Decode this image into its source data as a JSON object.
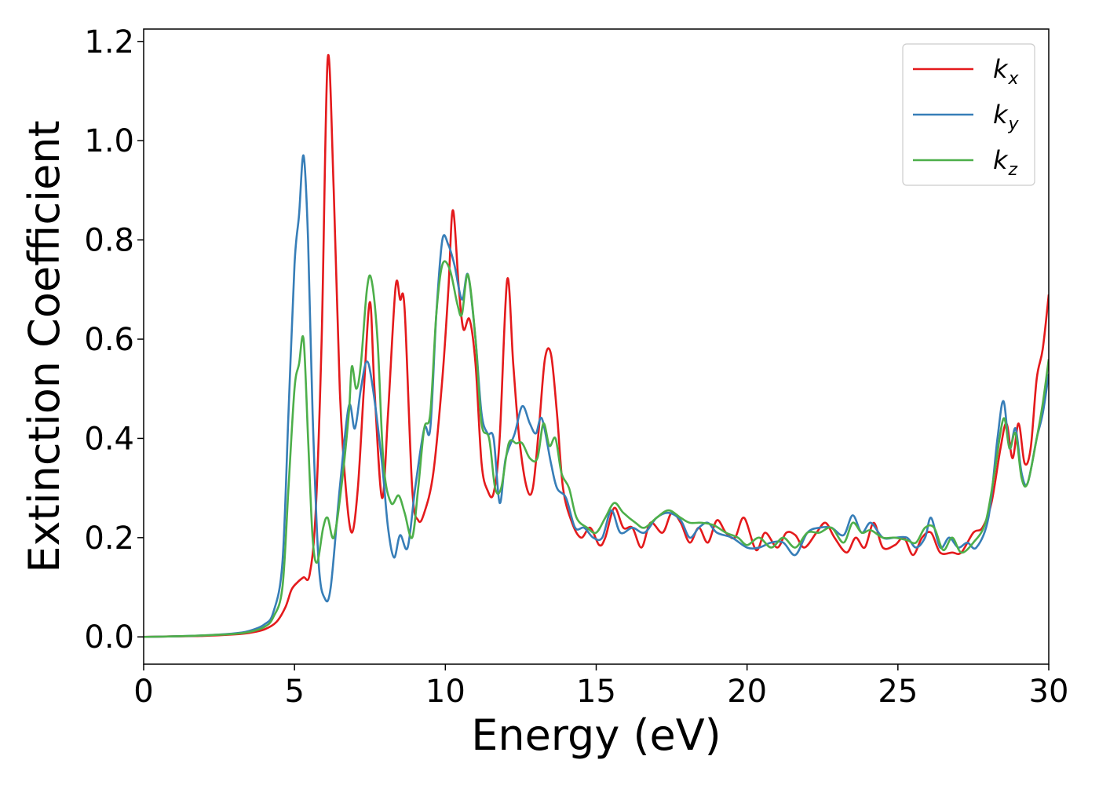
{
  "chart_data": {
    "type": "line",
    "title": "",
    "xlabel": "Energy (eV)",
    "ylabel": "Extinction Coefficient",
    "xlim": [
      0,
      30
    ],
    "ylim": [
      -0.055,
      1.225
    ],
    "xticks": [
      0,
      5,
      10,
      15,
      20,
      25,
      30
    ],
    "yticks": [
      0.0,
      0.2,
      0.4,
      0.6,
      0.8,
      1.0,
      1.2
    ],
    "xtick_labels": [
      "0",
      "5",
      "10",
      "15",
      "20",
      "25",
      "30"
    ],
    "ytick_labels": [
      "0.0",
      "0.2",
      "0.4",
      "0.6",
      "0.8",
      "1.0",
      "1.2"
    ],
    "grid": false,
    "legend_position": "top-right",
    "series": [
      {
        "name_base": "k",
        "name_sub": "x",
        "color": "#e41a1c",
        "points": [
          [
            0,
            0
          ],
          [
            1,
            0.001
          ],
          [
            2,
            0.002
          ],
          [
            3,
            0.005
          ],
          [
            3.5,
            0.008
          ],
          [
            4,
            0.015
          ],
          [
            4.4,
            0.03
          ],
          [
            4.7,
            0.06
          ],
          [
            4.9,
            0.095
          ],
          [
            5.1,
            0.11
          ],
          [
            5.3,
            0.12
          ],
          [
            5.5,
            0.125
          ],
          [
            5.7,
            0.25
          ],
          [
            5.9,
            0.6
          ],
          [
            6.1,
            1.165
          ],
          [
            6.3,
            0.9
          ],
          [
            6.5,
            0.5
          ],
          [
            6.7,
            0.3
          ],
          [
            6.9,
            0.21
          ],
          [
            7.1,
            0.3
          ],
          [
            7.3,
            0.5
          ],
          [
            7.5,
            0.675
          ],
          [
            7.65,
            0.5
          ],
          [
            7.9,
            0.28
          ],
          [
            8.1,
            0.45
          ],
          [
            8.35,
            0.705
          ],
          [
            8.5,
            0.68
          ],
          [
            8.65,
            0.66
          ],
          [
            8.9,
            0.3
          ],
          [
            9.1,
            0.235
          ],
          [
            9.3,
            0.25
          ],
          [
            9.6,
            0.33
          ],
          [
            9.9,
            0.52
          ],
          [
            10.1,
            0.7
          ],
          [
            10.25,
            0.86
          ],
          [
            10.45,
            0.7
          ],
          [
            10.6,
            0.62
          ],
          [
            10.8,
            0.64
          ],
          [
            11,
            0.55
          ],
          [
            11.2,
            0.35
          ],
          [
            11.4,
            0.295
          ],
          [
            11.6,
            0.29
          ],
          [
            11.8,
            0.4
          ],
          [
            12.05,
            0.72
          ],
          [
            12.25,
            0.55
          ],
          [
            12.45,
            0.4
          ],
          [
            12.7,
            0.3
          ],
          [
            12.9,
            0.3
          ],
          [
            13.1,
            0.42
          ],
          [
            13.3,
            0.56
          ],
          [
            13.5,
            0.57
          ],
          [
            13.7,
            0.45
          ],
          [
            13.9,
            0.3
          ],
          [
            14.2,
            0.23
          ],
          [
            14.5,
            0.2
          ],
          [
            14.8,
            0.22
          ],
          [
            15.1,
            0.185
          ],
          [
            15.3,
            0.2
          ],
          [
            15.6,
            0.26
          ],
          [
            15.9,
            0.22
          ],
          [
            16.2,
            0.22
          ],
          [
            16.5,
            0.18
          ],
          [
            16.8,
            0.23
          ],
          [
            17.2,
            0.21
          ],
          [
            17.5,
            0.25
          ],
          [
            17.8,
            0.23
          ],
          [
            18.1,
            0.19
          ],
          [
            18.4,
            0.22
          ],
          [
            18.7,
            0.19
          ],
          [
            19,
            0.235
          ],
          [
            19.3,
            0.21
          ],
          [
            19.6,
            0.2
          ],
          [
            19.9,
            0.24
          ],
          [
            20.3,
            0.175
          ],
          [
            20.6,
            0.21
          ],
          [
            21,
            0.18
          ],
          [
            21.3,
            0.21
          ],
          [
            21.6,
            0.205
          ],
          [
            21.9,
            0.18
          ],
          [
            22.3,
            0.21
          ],
          [
            22.6,
            0.23
          ],
          [
            22.9,
            0.2
          ],
          [
            23.3,
            0.17
          ],
          [
            23.6,
            0.2
          ],
          [
            23.9,
            0.18
          ],
          [
            24.2,
            0.23
          ],
          [
            24.5,
            0.18
          ],
          [
            24.9,
            0.185
          ],
          [
            25.2,
            0.2
          ],
          [
            25.5,
            0.165
          ],
          [
            25.8,
            0.2
          ],
          [
            26.1,
            0.21
          ],
          [
            26.4,
            0.17
          ],
          [
            26.8,
            0.17
          ],
          [
            27.1,
            0.17
          ],
          [
            27.5,
            0.21
          ],
          [
            27.8,
            0.22
          ],
          [
            28.1,
            0.27
          ],
          [
            28.4,
            0.38
          ],
          [
            28.6,
            0.43
          ],
          [
            28.8,
            0.36
          ],
          [
            29,
            0.43
          ],
          [
            29.2,
            0.35
          ],
          [
            29.4,
            0.38
          ],
          [
            29.6,
            0.52
          ],
          [
            29.8,
            0.58
          ],
          [
            30,
            0.69
          ]
        ]
      },
      {
        "name_base": "k",
        "name_sub": "y",
        "color": "#377eb8",
        "points": [
          [
            0,
            0
          ],
          [
            1,
            0.001
          ],
          [
            2,
            0.003
          ],
          [
            3,
            0.007
          ],
          [
            3.5,
            0.012
          ],
          [
            4,
            0.025
          ],
          [
            4.3,
            0.05
          ],
          [
            4.6,
            0.15
          ],
          [
            4.8,
            0.45
          ],
          [
            5,
            0.75
          ],
          [
            5.15,
            0.85
          ],
          [
            5.3,
            0.97
          ],
          [
            5.45,
            0.8
          ],
          [
            5.6,
            0.45
          ],
          [
            5.8,
            0.15
          ],
          [
            6,
            0.078
          ],
          [
            6.2,
            0.1
          ],
          [
            6.5,
            0.3
          ],
          [
            6.8,
            0.465
          ],
          [
            7,
            0.42
          ],
          [
            7.2,
            0.5
          ],
          [
            7.4,
            0.555
          ],
          [
            7.6,
            0.5
          ],
          [
            7.9,
            0.35
          ],
          [
            8.1,
            0.22
          ],
          [
            8.3,
            0.16
          ],
          [
            8.5,
            0.205
          ],
          [
            8.75,
            0.18
          ],
          [
            9,
            0.3
          ],
          [
            9.3,
            0.42
          ],
          [
            9.5,
            0.42
          ],
          [
            9.7,
            0.65
          ],
          [
            9.9,
            0.8
          ],
          [
            10.1,
            0.79
          ],
          [
            10.3,
            0.75
          ],
          [
            10.55,
            0.68
          ],
          [
            10.75,
            0.73
          ],
          [
            11,
            0.6
          ],
          [
            11.2,
            0.45
          ],
          [
            11.4,
            0.41
          ],
          [
            11.6,
            0.4
          ],
          [
            11.8,
            0.27
          ],
          [
            12,
            0.36
          ],
          [
            12.3,
            0.41
          ],
          [
            12.55,
            0.465
          ],
          [
            12.8,
            0.43
          ],
          [
            13,
            0.41
          ],
          [
            13.2,
            0.44
          ],
          [
            13.5,
            0.35
          ],
          [
            13.7,
            0.3
          ],
          [
            14,
            0.28
          ],
          [
            14.3,
            0.22
          ],
          [
            14.6,
            0.22
          ],
          [
            14.9,
            0.2
          ],
          [
            15.2,
            0.2
          ],
          [
            15.5,
            0.255
          ],
          [
            15.8,
            0.21
          ],
          [
            16.2,
            0.22
          ],
          [
            16.6,
            0.21
          ],
          [
            17,
            0.24
          ],
          [
            17.4,
            0.25
          ],
          [
            17.8,
            0.235
          ],
          [
            18.1,
            0.2
          ],
          [
            18.4,
            0.22
          ],
          [
            18.7,
            0.23
          ],
          [
            19,
            0.21
          ],
          [
            19.5,
            0.2
          ],
          [
            20,
            0.18
          ],
          [
            20.4,
            0.18
          ],
          [
            20.8,
            0.19
          ],
          [
            21.2,
            0.19
          ],
          [
            21.6,
            0.165
          ],
          [
            22,
            0.21
          ],
          [
            22.4,
            0.22
          ],
          [
            22.8,
            0.22
          ],
          [
            23.2,
            0.205
          ],
          [
            23.5,
            0.245
          ],
          [
            23.8,
            0.21
          ],
          [
            24.1,
            0.23
          ],
          [
            24.5,
            0.2
          ],
          [
            24.9,
            0.2
          ],
          [
            25.3,
            0.2
          ],
          [
            25.6,
            0.18
          ],
          [
            25.9,
            0.2
          ],
          [
            26.1,
            0.24
          ],
          [
            26.4,
            0.18
          ],
          [
            26.7,
            0.2
          ],
          [
            27,
            0.18
          ],
          [
            27.3,
            0.19
          ],
          [
            27.6,
            0.18
          ],
          [
            28,
            0.24
          ],
          [
            28.3,
            0.4
          ],
          [
            28.5,
            0.475
          ],
          [
            28.7,
            0.38
          ],
          [
            28.9,
            0.42
          ],
          [
            29.1,
            0.33
          ],
          [
            29.3,
            0.31
          ],
          [
            29.6,
            0.4
          ],
          [
            29.8,
            0.45
          ],
          [
            30,
            0.53
          ]
        ]
      },
      {
        "name_base": "k",
        "name_sub": "z",
        "color": "#4daf4a",
        "points": [
          [
            0,
            0
          ],
          [
            1,
            0.001
          ],
          [
            2,
            0.003
          ],
          [
            3,
            0.006
          ],
          [
            3.5,
            0.01
          ],
          [
            4,
            0.02
          ],
          [
            4.3,
            0.04
          ],
          [
            4.6,
            0.1
          ],
          [
            4.8,
            0.3
          ],
          [
            5,
            0.5
          ],
          [
            5.15,
            0.55
          ],
          [
            5.3,
            0.6
          ],
          [
            5.45,
            0.4
          ],
          [
            5.6,
            0.2
          ],
          [
            5.75,
            0.15
          ],
          [
            5.95,
            0.22
          ],
          [
            6.1,
            0.24
          ],
          [
            6.3,
            0.2
          ],
          [
            6.55,
            0.3
          ],
          [
            6.8,
            0.45
          ],
          [
            6.9,
            0.545
          ],
          [
            7.05,
            0.5
          ],
          [
            7.2,
            0.55
          ],
          [
            7.4,
            0.7
          ],
          [
            7.55,
            0.72
          ],
          [
            7.75,
            0.6
          ],
          [
            7.95,
            0.35
          ],
          [
            8.2,
            0.27
          ],
          [
            8.45,
            0.285
          ],
          [
            8.65,
            0.25
          ],
          [
            8.9,
            0.2
          ],
          [
            9.1,
            0.3
          ],
          [
            9.3,
            0.42
          ],
          [
            9.5,
            0.45
          ],
          [
            9.7,
            0.65
          ],
          [
            9.9,
            0.75
          ],
          [
            10.15,
            0.74
          ],
          [
            10.4,
            0.67
          ],
          [
            10.55,
            0.65
          ],
          [
            10.75,
            0.73
          ],
          [
            11,
            0.6
          ],
          [
            11.2,
            0.43
          ],
          [
            11.45,
            0.4
          ],
          [
            11.65,
            0.3
          ],
          [
            11.85,
            0.3
          ],
          [
            12.1,
            0.39
          ],
          [
            12.35,
            0.39
          ],
          [
            12.55,
            0.39
          ],
          [
            12.8,
            0.36
          ],
          [
            13.05,
            0.36
          ],
          [
            13.25,
            0.43
          ],
          [
            13.45,
            0.385
          ],
          [
            13.65,
            0.4
          ],
          [
            13.85,
            0.33
          ],
          [
            14.1,
            0.3
          ],
          [
            14.35,
            0.24
          ],
          [
            14.7,
            0.22
          ],
          [
            15,
            0.21
          ],
          [
            15.3,
            0.24
          ],
          [
            15.6,
            0.27
          ],
          [
            15.9,
            0.25
          ],
          [
            16.3,
            0.23
          ],
          [
            16.6,
            0.22
          ],
          [
            17,
            0.24
          ],
          [
            17.4,
            0.255
          ],
          [
            17.8,
            0.24
          ],
          [
            18.1,
            0.23
          ],
          [
            18.5,
            0.23
          ],
          [
            18.9,
            0.225
          ],
          [
            19.3,
            0.21
          ],
          [
            19.7,
            0.2
          ],
          [
            20,
            0.185
          ],
          [
            20.4,
            0.2
          ],
          [
            20.8,
            0.18
          ],
          [
            21.2,
            0.2
          ],
          [
            21.6,
            0.18
          ],
          [
            22,
            0.21
          ],
          [
            22.4,
            0.21
          ],
          [
            22.8,
            0.22
          ],
          [
            23.2,
            0.19
          ],
          [
            23.5,
            0.23
          ],
          [
            23.8,
            0.21
          ],
          [
            24.1,
            0.215
          ],
          [
            24.5,
            0.2
          ],
          [
            24.9,
            0.2
          ],
          [
            25.3,
            0.195
          ],
          [
            25.6,
            0.19
          ],
          [
            25.9,
            0.22
          ],
          [
            26.2,
            0.22
          ],
          [
            26.5,
            0.175
          ],
          [
            26.8,
            0.2
          ],
          [
            27.1,
            0.17
          ],
          [
            27.5,
            0.19
          ],
          [
            27.9,
            0.23
          ],
          [
            28.2,
            0.33
          ],
          [
            28.5,
            0.44
          ],
          [
            28.7,
            0.38
          ],
          [
            28.9,
            0.41
          ],
          [
            29.1,
            0.32
          ],
          [
            29.3,
            0.31
          ],
          [
            29.6,
            0.4
          ],
          [
            29.8,
            0.47
          ],
          [
            30,
            0.56
          ]
        ]
      }
    ]
  }
}
